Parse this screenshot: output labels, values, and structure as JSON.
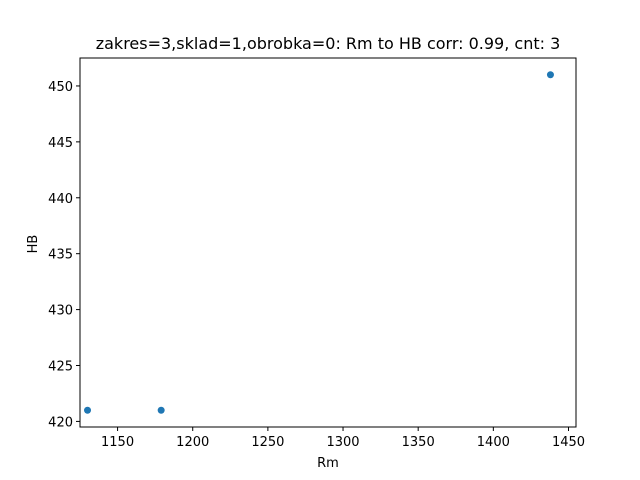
{
  "chart_data": {
    "type": "scatter",
    "title": "zakres=3,sklad=1,obrobka=0: Rm to HB corr: 0.99, cnt: 3",
    "xlabel": "Rm",
    "ylabel": "HB",
    "xlim": [
      1125,
      1455
    ],
    "ylim": [
      419.5,
      452.5
    ],
    "xticks": [
      1150,
      1200,
      1250,
      1300,
      1350,
      1400,
      1450
    ],
    "yticks": [
      420,
      425,
      430,
      435,
      440,
      445,
      450
    ],
    "grid": false,
    "series": [
      {
        "color": "#1f77b4",
        "points": [
          {
            "x": 1130,
            "y": 421
          },
          {
            "x": 1179,
            "y": 421
          },
          {
            "x": 1438,
            "y": 451
          }
        ]
      }
    ]
  }
}
